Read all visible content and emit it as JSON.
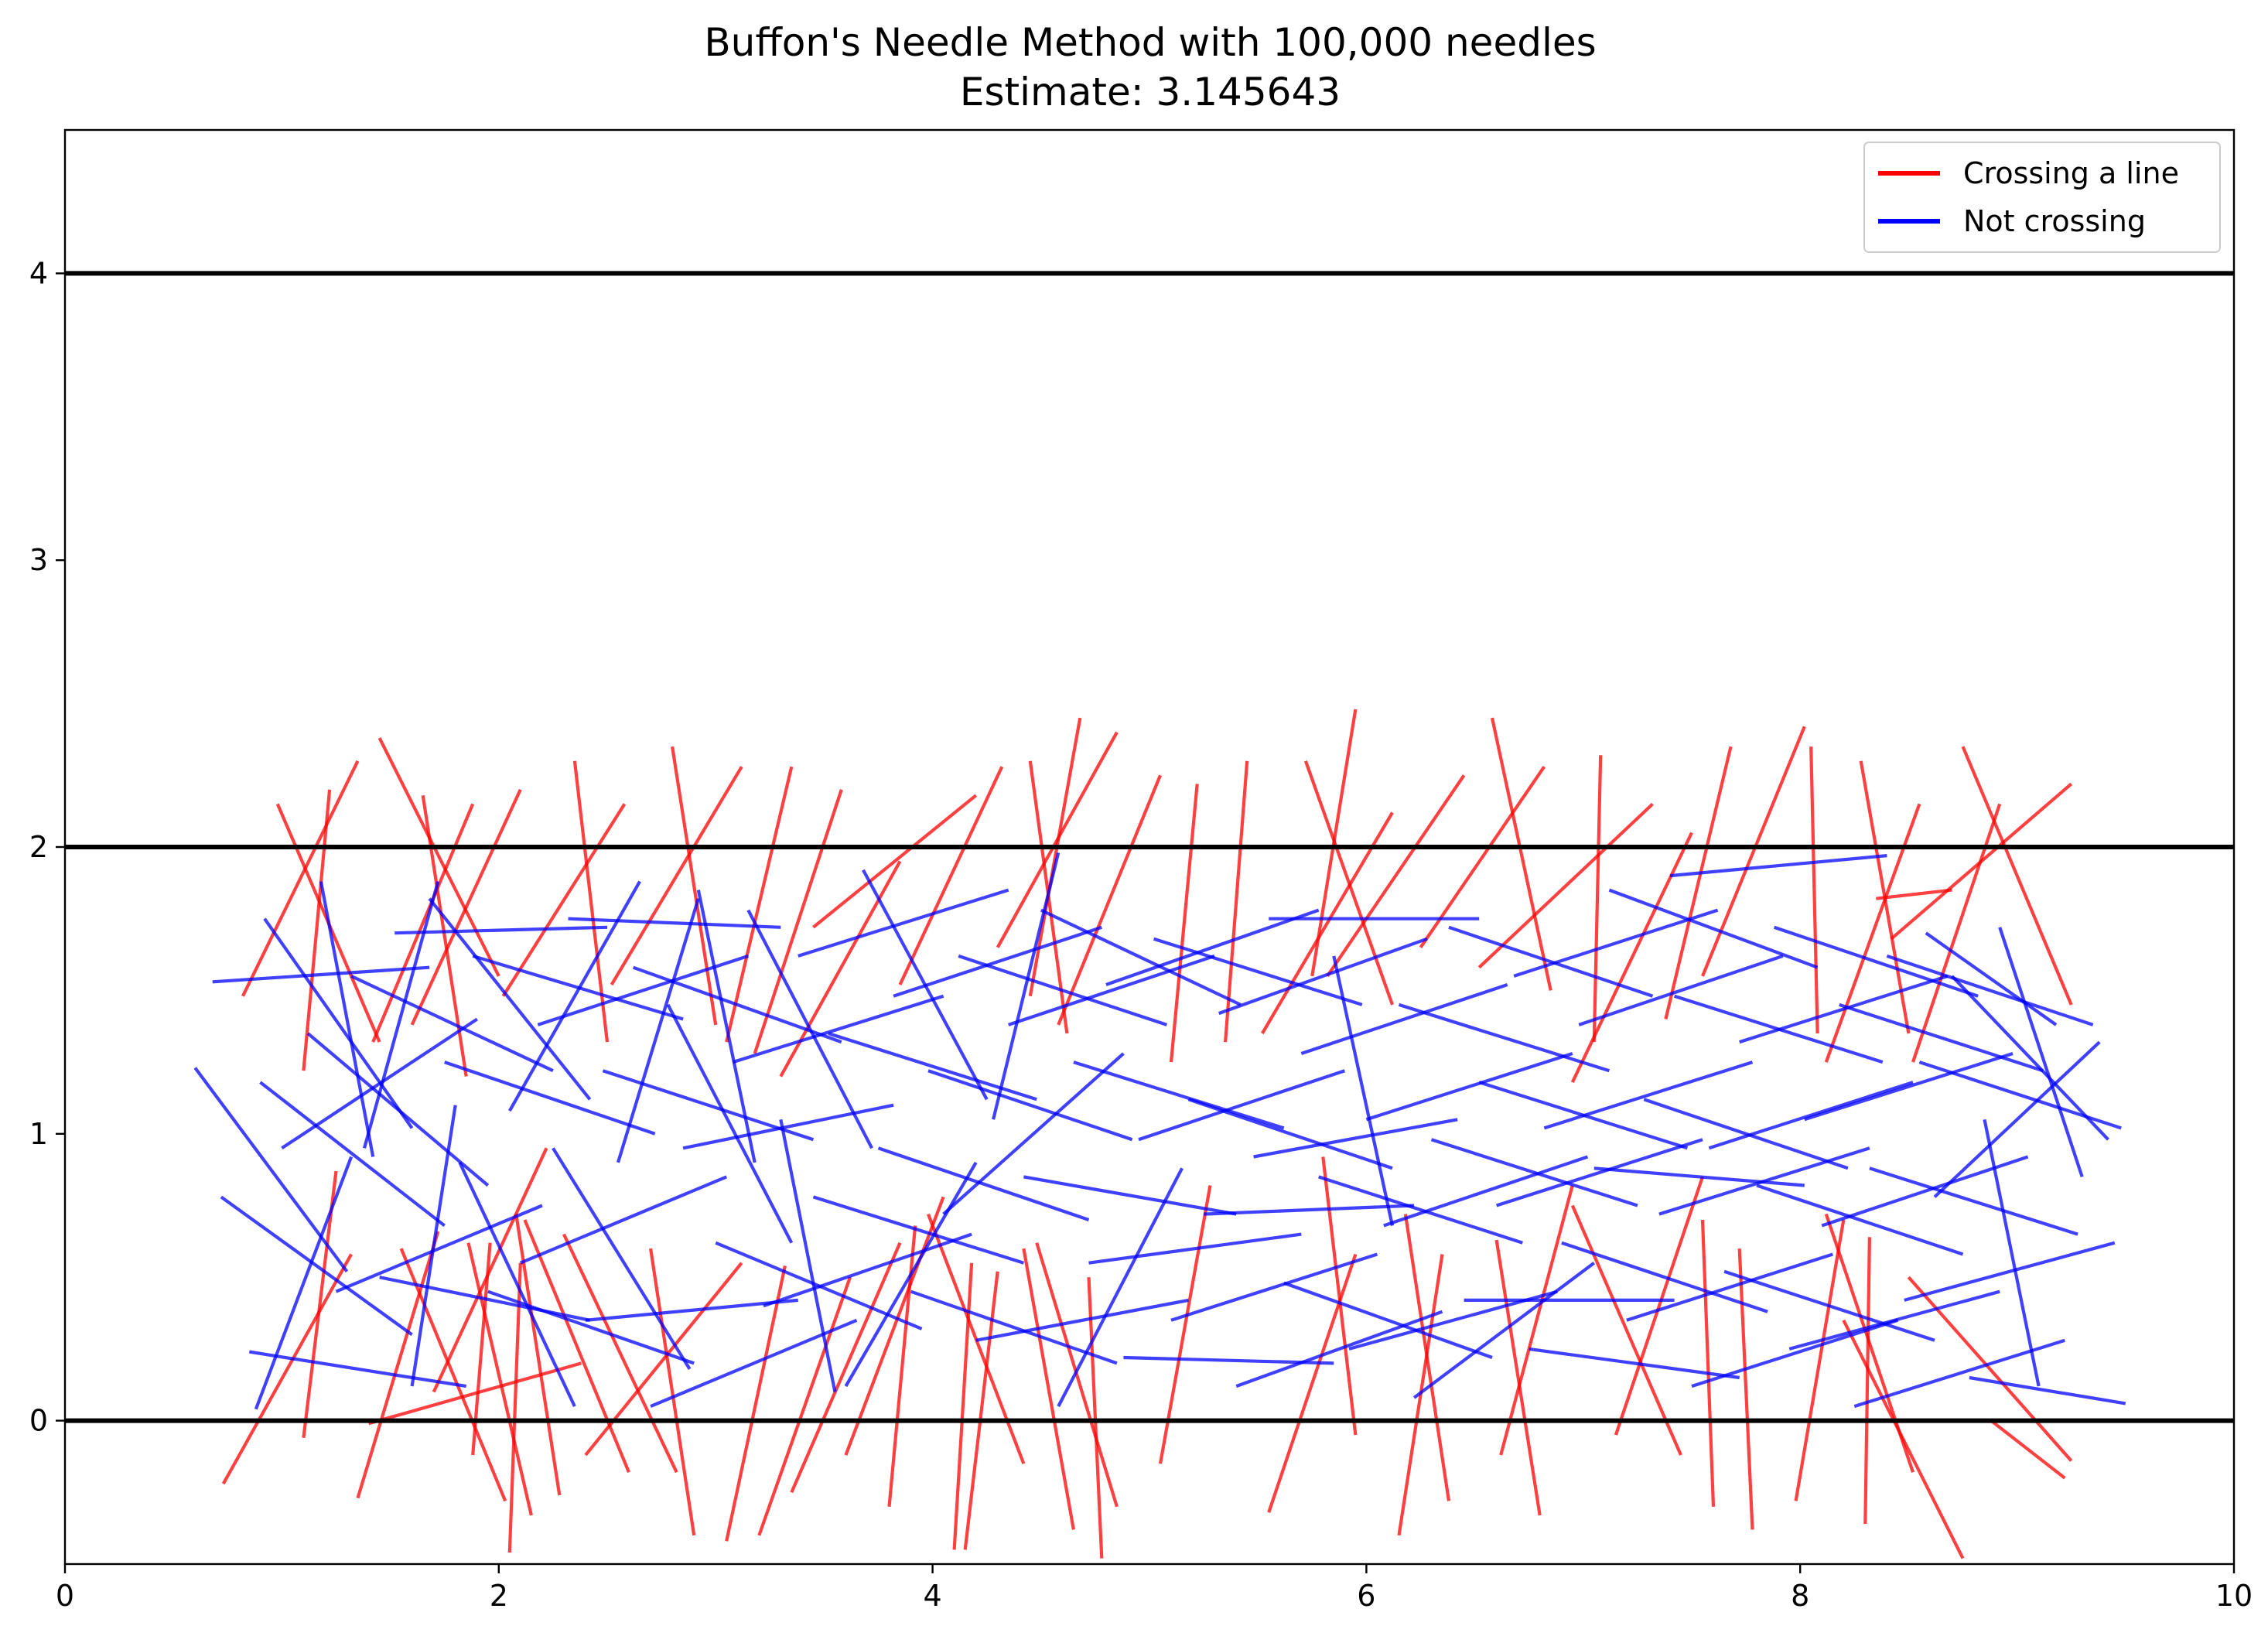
{
  "chart_data": {
    "type": "line",
    "title": "Buffon's Needle Method with 100,000 needles",
    "subtitle": "Estimate: 3.145643",
    "xlabel": "",
    "ylabel": "",
    "xlim": [
      0,
      10
    ],
    "ylim": [
      -0.5,
      4.5
    ],
    "xticks": [
      "0",
      "2",
      "4",
      "6",
      "8",
      "10"
    ],
    "yticks": [
      "0",
      "1",
      "2",
      "3",
      "4"
    ],
    "grid": false,
    "legend_position": "top-right",
    "reference_lines_y": [
      0,
      2,
      4
    ],
    "needle_length": 1,
    "series": [
      {
        "name": "Crossing a line",
        "color": "#ff0000",
        "segments": [
          [
            0.73,
            -0.22,
            1.32,
            0.58
          ],
          [
            1.1,
            -0.06,
            1.25,
            0.87
          ],
          [
            1.35,
            -0.27,
            1.72,
            0.66
          ],
          [
            1.4,
            -0.01,
            2.38,
            0.2
          ],
          [
            1.7,
            0.1,
            2.22,
            0.95
          ],
          [
            1.88,
            -0.12,
            1.96,
            0.62
          ],
          [
            2.03,
            -0.28,
            1.55,
            0.6
          ],
          [
            2.05,
            -0.46,
            2.1,
            0.55
          ],
          [
            2.15,
            -0.33,
            1.86,
            0.62
          ],
          [
            2.28,
            -0.26,
            2.08,
            0.72
          ],
          [
            2.6,
            -0.18,
            2.12,
            0.7
          ],
          [
            2.82,
            -0.18,
            2.3,
            0.65
          ],
          [
            2.4,
            -0.12,
            3.12,
            0.55
          ],
          [
            2.9,
            -0.4,
            2.7,
            0.6
          ],
          [
            3.05,
            -0.42,
            3.32,
            0.54
          ],
          [
            3.2,
            -0.4,
            3.62,
            0.5
          ],
          [
            3.35,
            -0.25,
            3.85,
            0.62
          ],
          [
            3.6,
            -0.12,
            4.05,
            0.78
          ],
          [
            3.8,
            -0.3,
            3.92,
            0.68
          ],
          [
            4.1,
            -0.45,
            4.18,
            0.55
          ],
          [
            4.15,
            -0.45,
            4.3,
            0.52
          ],
          [
            4.42,
            -0.15,
            3.98,
            0.72
          ],
          [
            4.65,
            -0.38,
            4.42,
            0.6
          ],
          [
            4.78,
            -0.48,
            4.72,
            0.5
          ],
          [
            4.85,
            -0.3,
            4.48,
            0.62
          ],
          [
            5.05,
            -0.15,
            5.28,
            0.82
          ],
          [
            5.55,
            -0.32,
            5.95,
            0.58
          ],
          [
            5.95,
            -0.05,
            5.8,
            0.92
          ],
          [
            6.15,
            -0.4,
            6.35,
            0.58
          ],
          [
            6.38,
            -0.28,
            6.18,
            0.72
          ],
          [
            6.62,
            -0.12,
            6.95,
            0.82
          ],
          [
            6.8,
            -0.33,
            6.6,
            0.63
          ],
          [
            7.15,
            -0.05,
            7.55,
            0.85
          ],
          [
            7.45,
            -0.12,
            6.95,
            0.75
          ],
          [
            7.6,
            -0.3,
            7.55,
            0.7
          ],
          [
            7.78,
            -0.38,
            7.72,
            0.6
          ],
          [
            7.98,
            -0.28,
            8.2,
            0.7
          ],
          [
            8.3,
            -0.36,
            8.32,
            0.64
          ],
          [
            8.52,
            -0.18,
            8.12,
            0.72
          ],
          [
            8.75,
            -0.48,
            8.2,
            0.35
          ],
          [
            8.88,
            0.0,
            9.22,
            -0.2
          ],
          [
            9.25,
            -0.14,
            8.5,
            0.5
          ],
          [
            0.82,
            1.48,
            1.35,
            2.3
          ],
          [
            0.98,
            2.15,
            1.45,
            1.32
          ],
          [
            1.22,
            2.2,
            1.1,
            1.22
          ],
          [
            1.45,
            2.38,
            2.0,
            1.55
          ],
          [
            1.65,
            2.18,
            1.85,
            1.2
          ],
          [
            1.88,
            2.15,
            1.42,
            1.32
          ],
          [
            2.1,
            2.2,
            1.6,
            1.38
          ],
          [
            2.35,
            2.3,
            2.5,
            1.32
          ],
          [
            2.58,
            2.15,
            2.02,
            1.48
          ],
          [
            2.8,
            2.35,
            3.0,
            1.38
          ],
          [
            3.12,
            2.28,
            2.52,
            1.52
          ],
          [
            3.35,
            2.28,
            3.05,
            1.32
          ],
          [
            3.58,
            2.2,
            3.18,
            1.28
          ],
          [
            3.85,
            1.95,
            3.3,
            1.2
          ],
          [
            4.2,
            2.18,
            3.45,
            1.72
          ],
          [
            4.32,
            2.28,
            3.85,
            1.52
          ],
          [
            4.45,
            2.3,
            4.62,
            1.35
          ],
          [
            4.68,
            2.45,
            4.45,
            1.48
          ],
          [
            4.85,
            2.4,
            4.3,
            1.65
          ],
          [
            5.05,
            2.25,
            4.58,
            1.38
          ],
          [
            5.22,
            2.22,
            5.1,
            1.25
          ],
          [
            5.45,
            2.3,
            5.35,
            1.32
          ],
          [
            5.72,
            2.3,
            6.12,
            1.45
          ],
          [
            5.95,
            2.48,
            5.75,
            1.55
          ],
          [
            6.12,
            2.12,
            5.52,
            1.35
          ],
          [
            6.45,
            2.25,
            5.82,
            1.55
          ],
          [
            6.58,
            2.45,
            6.85,
            1.5
          ],
          [
            6.82,
            2.28,
            6.25,
            1.65
          ],
          [
            7.08,
            2.32,
            7.05,
            1.32
          ],
          [
            7.32,
            2.15,
            6.52,
            1.58
          ],
          [
            7.5,
            2.05,
            6.95,
            1.18
          ],
          [
            7.68,
            2.35,
            7.38,
            1.4
          ],
          [
            8.02,
            2.42,
            7.55,
            1.55
          ],
          [
            8.05,
            2.35,
            8.08,
            1.35
          ],
          [
            8.28,
            2.3,
            8.5,
            1.35
          ],
          [
            8.55,
            2.15,
            8.12,
            1.25
          ],
          [
            8.75,
            2.35,
            9.25,
            1.45
          ],
          [
            8.92,
            2.15,
            8.52,
            1.25
          ],
          [
            9.25,
            2.22,
            8.42,
            1.68
          ],
          [
            8.35,
            1.82,
            8.7,
            1.85
          ]
        ]
      },
      {
        "name": "Not crossing",
        "color": "#0000ff",
        "segments": [
          [
            0.68,
            1.53,
            1.68,
            1.58
          ],
          [
            0.6,
            1.23,
            1.3,
            0.52
          ],
          [
            0.72,
            0.78,
            1.6,
            0.3
          ],
          [
            0.85,
            0.24,
            1.85,
            0.12
          ],
          [
            0.88,
            0.04,
            1.32,
            0.92
          ],
          [
            0.92,
            1.75,
            1.6,
            1.02
          ],
          [
            0.9,
            1.18,
            1.75,
            0.68
          ],
          [
            1.0,
            0.95,
            1.9,
            1.4
          ],
          [
            1.12,
            1.35,
            1.95,
            0.82
          ],
          [
            1.18,
            1.88,
            1.42,
            0.92
          ],
          [
            1.25,
            0.45,
            2.2,
            0.75
          ],
          [
            1.32,
            1.55,
            2.25,
            1.22
          ],
          [
            1.38,
            0.95,
            1.72,
            1.88
          ],
          [
            1.45,
            0.5,
            2.42,
            0.35
          ],
          [
            1.52,
            1.7,
            2.5,
            1.72
          ],
          [
            1.6,
            0.12,
            1.8,
            1.1
          ],
          [
            1.68,
            1.82,
            2.42,
            1.12
          ],
          [
            1.75,
            1.25,
            2.72,
            1.0
          ],
          [
            1.82,
            0.9,
            2.35,
            0.05
          ],
          [
            1.88,
            1.62,
            2.85,
            1.4
          ],
          [
            1.95,
            0.45,
            2.9,
            0.2
          ],
          [
            2.05,
            1.08,
            2.65,
            1.88
          ],
          [
            2.1,
            0.55,
            3.05,
            0.85
          ],
          [
            2.18,
            1.38,
            3.15,
            1.62
          ],
          [
            2.25,
            0.95,
            2.88,
            0.18
          ],
          [
            2.32,
            1.75,
            3.3,
            1.72
          ],
          [
            2.4,
            0.35,
            3.38,
            0.42
          ],
          [
            2.48,
            1.22,
            3.45,
            0.98
          ],
          [
            2.55,
            0.9,
            2.92,
            1.82
          ],
          [
            2.62,
            1.58,
            3.58,
            1.32
          ],
          [
            2.7,
            0.05,
            3.65,
            0.35
          ],
          [
            2.78,
            1.45,
            3.35,
            0.62
          ],
          [
            2.85,
            0.95,
            3.82,
            1.1
          ],
          [
            2.92,
            1.85,
            3.18,
            0.9
          ],
          [
            3.0,
            0.62,
            3.95,
            0.32
          ],
          [
            3.08,
            1.25,
            4.05,
            1.48
          ],
          [
            3.15,
            1.78,
            3.72,
            0.95
          ],
          [
            3.22,
            0.4,
            4.18,
            0.65
          ],
          [
            3.3,
            1.05,
            3.55,
            0.1
          ],
          [
            3.38,
            1.62,
            4.35,
            1.85
          ],
          [
            3.45,
            0.78,
            4.42,
            0.55
          ],
          [
            3.52,
            1.35,
            4.48,
            1.12
          ],
          [
            3.6,
            0.12,
            4.2,
            0.9
          ],
          [
            3.68,
            1.92,
            4.25,
            1.12
          ],
          [
            3.75,
            0.95,
            4.72,
            0.7
          ],
          [
            3.82,
            1.48,
            4.78,
            1.72
          ],
          [
            3.9,
            0.45,
            4.85,
            0.2
          ],
          [
            3.98,
            1.22,
            4.92,
            0.98
          ],
          [
            4.05,
            0.72,
            4.88,
            1.28
          ],
          [
            4.12,
            1.62,
            5.08,
            1.38
          ],
          [
            4.2,
            0.28,
            5.18,
            0.42
          ],
          [
            4.28,
            1.05,
            4.58,
            1.98
          ],
          [
            4.35,
            1.38,
            5.3,
            1.62
          ],
          [
            4.42,
            0.85,
            5.4,
            0.72
          ],
          [
            4.5,
            1.78,
            5.42,
            1.45
          ],
          [
            4.58,
            0.05,
            5.15,
            0.88
          ],
          [
            4.65,
            1.25,
            5.62,
            1.02
          ],
          [
            4.72,
            0.55,
            5.7,
            0.65
          ],
          [
            4.8,
            1.52,
            5.78,
            1.78
          ],
          [
            4.88,
            0.22,
            5.85,
            0.2
          ],
          [
            4.95,
            0.98,
            5.9,
            1.22
          ],
          [
            5.02,
            1.68,
            5.98,
            1.45
          ],
          [
            5.1,
            0.35,
            6.05,
            0.58
          ],
          [
            5.18,
            1.12,
            6.12,
            0.88
          ],
          [
            5.25,
            0.72,
            6.22,
            0.75
          ],
          [
            5.32,
            1.42,
            6.28,
            1.68
          ],
          [
            5.4,
            0.12,
            6.35,
            0.38
          ],
          [
            5.48,
            0.92,
            6.42,
            1.05
          ],
          [
            5.55,
            1.75,
            6.52,
            1.75
          ],
          [
            5.62,
            0.48,
            6.58,
            0.22
          ],
          [
            5.7,
            1.28,
            6.65,
            1.52
          ],
          [
            5.78,
            0.85,
            6.72,
            0.62
          ],
          [
            5.85,
            1.62,
            6.12,
            0.68
          ],
          [
            5.92,
            0.25,
            6.88,
            0.45
          ],
          [
            6.0,
            1.05,
            6.95,
            1.28
          ],
          [
            6.08,
            0.68,
            7.02,
            0.92
          ],
          [
            6.15,
            1.45,
            7.12,
            1.22
          ],
          [
            6.22,
            0.08,
            7.05,
            0.55
          ],
          [
            6.3,
            0.98,
            7.25,
            0.75
          ],
          [
            6.38,
            1.72,
            7.32,
            1.48
          ],
          [
            6.45,
            0.42,
            7.42,
            0.42
          ],
          [
            6.52,
            1.18,
            7.48,
            0.95
          ],
          [
            6.6,
            0.75,
            7.55,
            0.98
          ],
          [
            6.68,
            1.55,
            7.62,
            1.78
          ],
          [
            6.75,
            0.25,
            7.72,
            0.15
          ],
          [
            6.82,
            1.02,
            7.78,
            1.25
          ],
          [
            6.9,
            0.62,
            7.85,
            0.38
          ],
          [
            6.98,
            1.38,
            7.92,
            1.62
          ],
          [
            7.05,
            0.88,
            8.02,
            0.82
          ],
          [
            7.12,
            1.85,
            8.08,
            1.58
          ],
          [
            7.2,
            0.35,
            8.15,
            0.58
          ],
          [
            7.28,
            1.12,
            8.22,
            0.88
          ],
          [
            7.35,
            0.72,
            8.32,
            0.95
          ],
          [
            7.42,
            1.48,
            8.38,
            1.25
          ],
          [
            7.5,
            0.12,
            8.45,
            0.35
          ],
          [
            7.58,
            0.95,
            8.52,
            1.18
          ],
          [
            7.65,
            0.52,
            8.62,
            0.28
          ],
          [
            7.72,
            1.32,
            8.68,
            1.55
          ],
          [
            7.8,
            0.82,
            8.75,
            0.58
          ],
          [
            7.88,
            1.72,
            8.82,
            1.48
          ],
          [
            7.95,
            0.25,
            8.92,
            0.45
          ],
          [
            8.02,
            1.05,
            8.98,
            1.28
          ],
          [
            8.1,
            0.68,
            9.05,
            0.92
          ],
          [
            8.18,
            1.45,
            9.12,
            1.22
          ],
          [
            8.25,
            0.05,
            9.22,
            0.28
          ],
          [
            8.32,
            0.88,
            9.28,
            0.65
          ],
          [
            8.4,
            1.62,
            9.35,
            1.38
          ],
          [
            8.48,
            0.42,
            9.45,
            0.62
          ],
          [
            8.55,
            1.25,
            9.48,
            1.02
          ],
          [
            8.62,
            0.78,
            9.38,
            1.32
          ],
          [
            8.7,
            1.55,
            9.42,
            0.98
          ],
          [
            8.78,
            0.15,
            9.5,
            0.06
          ],
          [
            8.85,
            1.05,
            9.1,
            0.12
          ],
          [
            8.92,
            1.72,
            9.3,
            0.85
          ],
          [
            7.4,
            1.9,
            8.4,
            1.97
          ],
          [
            8.58,
            1.7,
            9.18,
            1.38
          ]
        ]
      }
    ]
  }
}
